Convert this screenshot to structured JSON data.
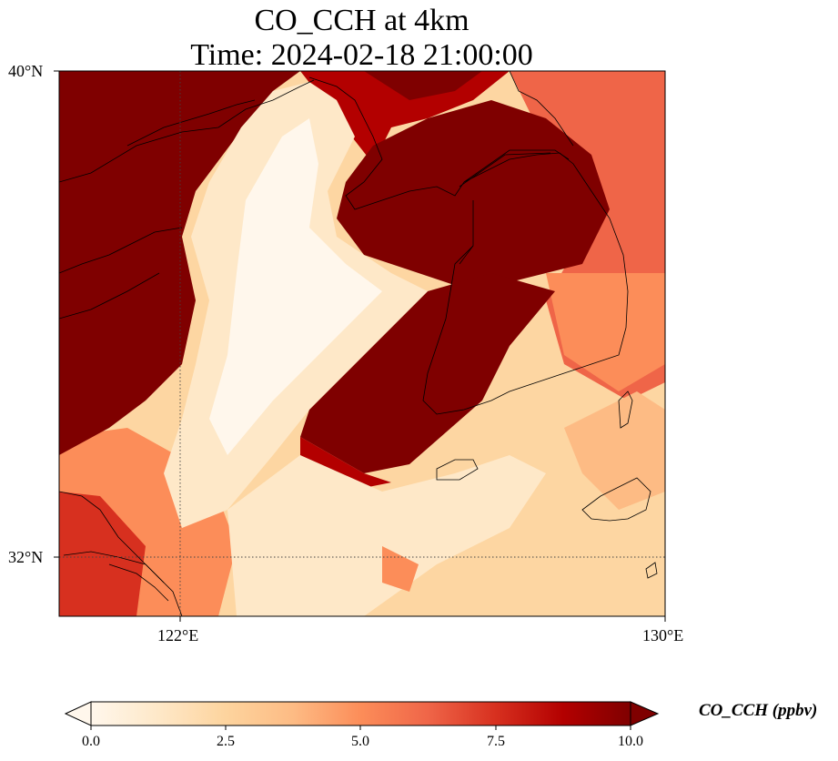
{
  "title": {
    "line1": "CO_CCH at 4km",
    "line2": "Time: 2024-02-18 21:00:00"
  },
  "map": {
    "lon_range": [
      120,
      130
    ],
    "lat_range": [
      31,
      40
    ],
    "gridlines": {
      "lon": 122,
      "lat": 32,
      "style": "dotted"
    },
    "lat_ticks": [
      {
        "value": 40,
        "label": "40°N"
      },
      {
        "value": 32,
        "label": "32°N"
      }
    ],
    "lon_ticks": [
      {
        "value": 122,
        "label": "122°E"
      },
      {
        "value": 130,
        "label": "130°E"
      }
    ],
    "coastline_color": "#000000"
  },
  "colorbar": {
    "label": "CO_CCH (ppbv)",
    "colormap": "OrRd",
    "min": 0.0,
    "max": 10.0,
    "extend": "both",
    "ticks": [
      {
        "value": 0.0,
        "label": "0.0"
      },
      {
        "value": 2.5,
        "label": "2.5"
      },
      {
        "value": 5.0,
        "label": "5.0"
      },
      {
        "value": 7.5,
        "label": "7.5"
      },
      {
        "value": 10.0,
        "label": "10.0"
      }
    ],
    "color_stops": [
      "#fff7ec",
      "#fee8c8",
      "#fdd49e",
      "#fdbb84",
      "#fc8d59",
      "#ef6548",
      "#d7301f",
      "#b30000",
      "#7f0000"
    ]
  }
}
